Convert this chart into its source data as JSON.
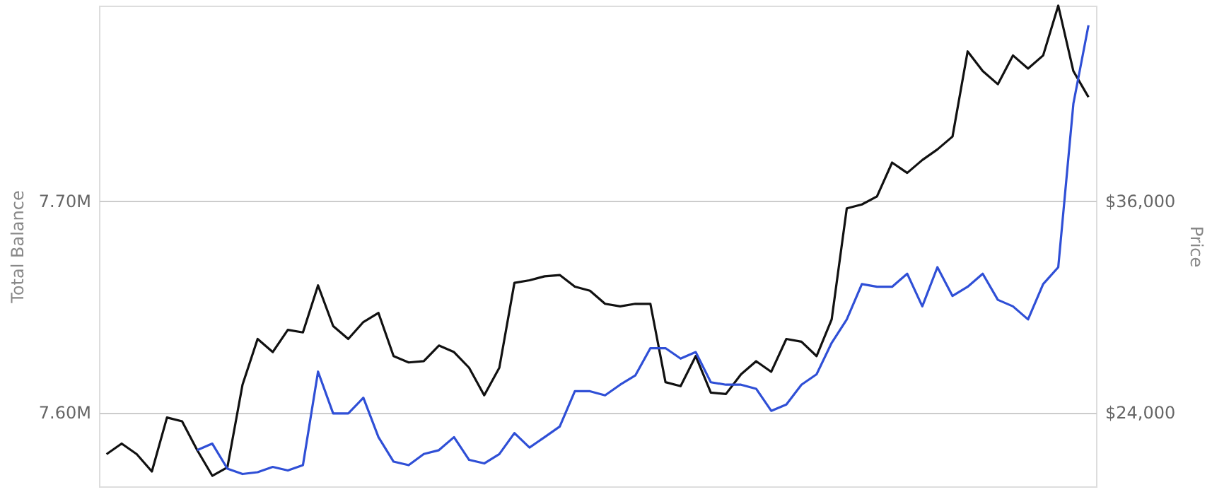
{
  "chart_data": {
    "type": "line",
    "ylabel": "Total Balance",
    "y2label": "Price",
    "categories": [
      null,
      null,
      null,
      null,
      null,
      null,
      null,
      null,
      null,
      null,
      null,
      null,
      null,
      null,
      null,
      null,
      null,
      null,
      null,
      null,
      null,
      null,
      null,
      null,
      null,
      null,
      null,
      null,
      null,
      null,
      null,
      null,
      null,
      null,
      null,
      null,
      null,
      null,
      null,
      null,
      null,
      null,
      null,
      null,
      null,
      null,
      null,
      null,
      null,
      null,
      null,
      null,
      null,
      null,
      null,
      null,
      null,
      null,
      null,
      null,
      null,
      null,
      null,
      null,
      null,
      null
    ],
    "ylim": [
      7565000,
      7792000
    ],
    "yticks": [
      {
        "value": 7600000,
        "label": "7.60M"
      },
      {
        "value": 7700000,
        "label": "7.70M"
      }
    ],
    "y2lim": [
      19800,
      47040
    ],
    "y2ticks": [
      {
        "value": 24000,
        "label": "$24,000"
      },
      {
        "value": 36000,
        "label": "$36,000"
      }
    ],
    "grid": "y",
    "tick_labels": "y",
    "line_style": "solid",
    "marker": "none",
    "series": [
      {
        "color": "#111111",
        "values": [
          7580200,
          7585200,
          7580200,
          7572000,
          7597500,
          7595700,
          7582100,
          7570000,
          7574000,
          7613000,
          7634600,
          7628400,
          7638900,
          7637700,
          7659900,
          7640700,
          7634600,
          7642600,
          7646900,
          7626500,
          7623500,
          7624100,
          7631500,
          7628400,
          7621000,
          7608000,
          7621000,
          7661100,
          7662300,
          7664200,
          7664800,
          7659300,
          7657400,
          7651200,
          7650000,
          7651200,
          7651200,
          7614200,
          7612300,
          7626500,
          7609300,
          7608600,
          7617900,
          7624100,
          7619100,
          7634600,
          7633300,
          7626500,
          7643800,
          7696300,
          7698100,
          7701900,
          7717900,
          7713000,
          7719100,
          7724100,
          7730200,
          7770400,
          7761100,
          7754900,
          7768500,
          7762300,
          7768500,
          7792000,
          7761100,
          7748800
        ]
      },
      {
        "color": "#2f4fd6",
        "axis": "y2",
        "values": [
          null,
          null,
          null,
          null,
          null,
          null,
          21850,
          22220,
          20800,
          20500,
          20600,
          20900,
          20700,
          21000,
          26300,
          23930,
          23930,
          24820,
          22590,
          21200,
          21000,
          21630,
          21850,
          22590,
          21300,
          21100,
          21630,
          22820,
          22000,
          22590,
          23190,
          25190,
          25190,
          24960,
          25560,
          26080,
          27630,
          27630,
          27040,
          27410,
          25700,
          25560,
          25560,
          25330,
          24080,
          24440,
          25560,
          26150,
          27930,
          29260,
          31260,
          31110,
          31110,
          31850,
          30000,
          32220,
          30590,
          31110,
          31850,
          30370,
          30000,
          29260,
          31260,
          32220,
          41480,
          45930
        ]
      }
    ]
  }
}
